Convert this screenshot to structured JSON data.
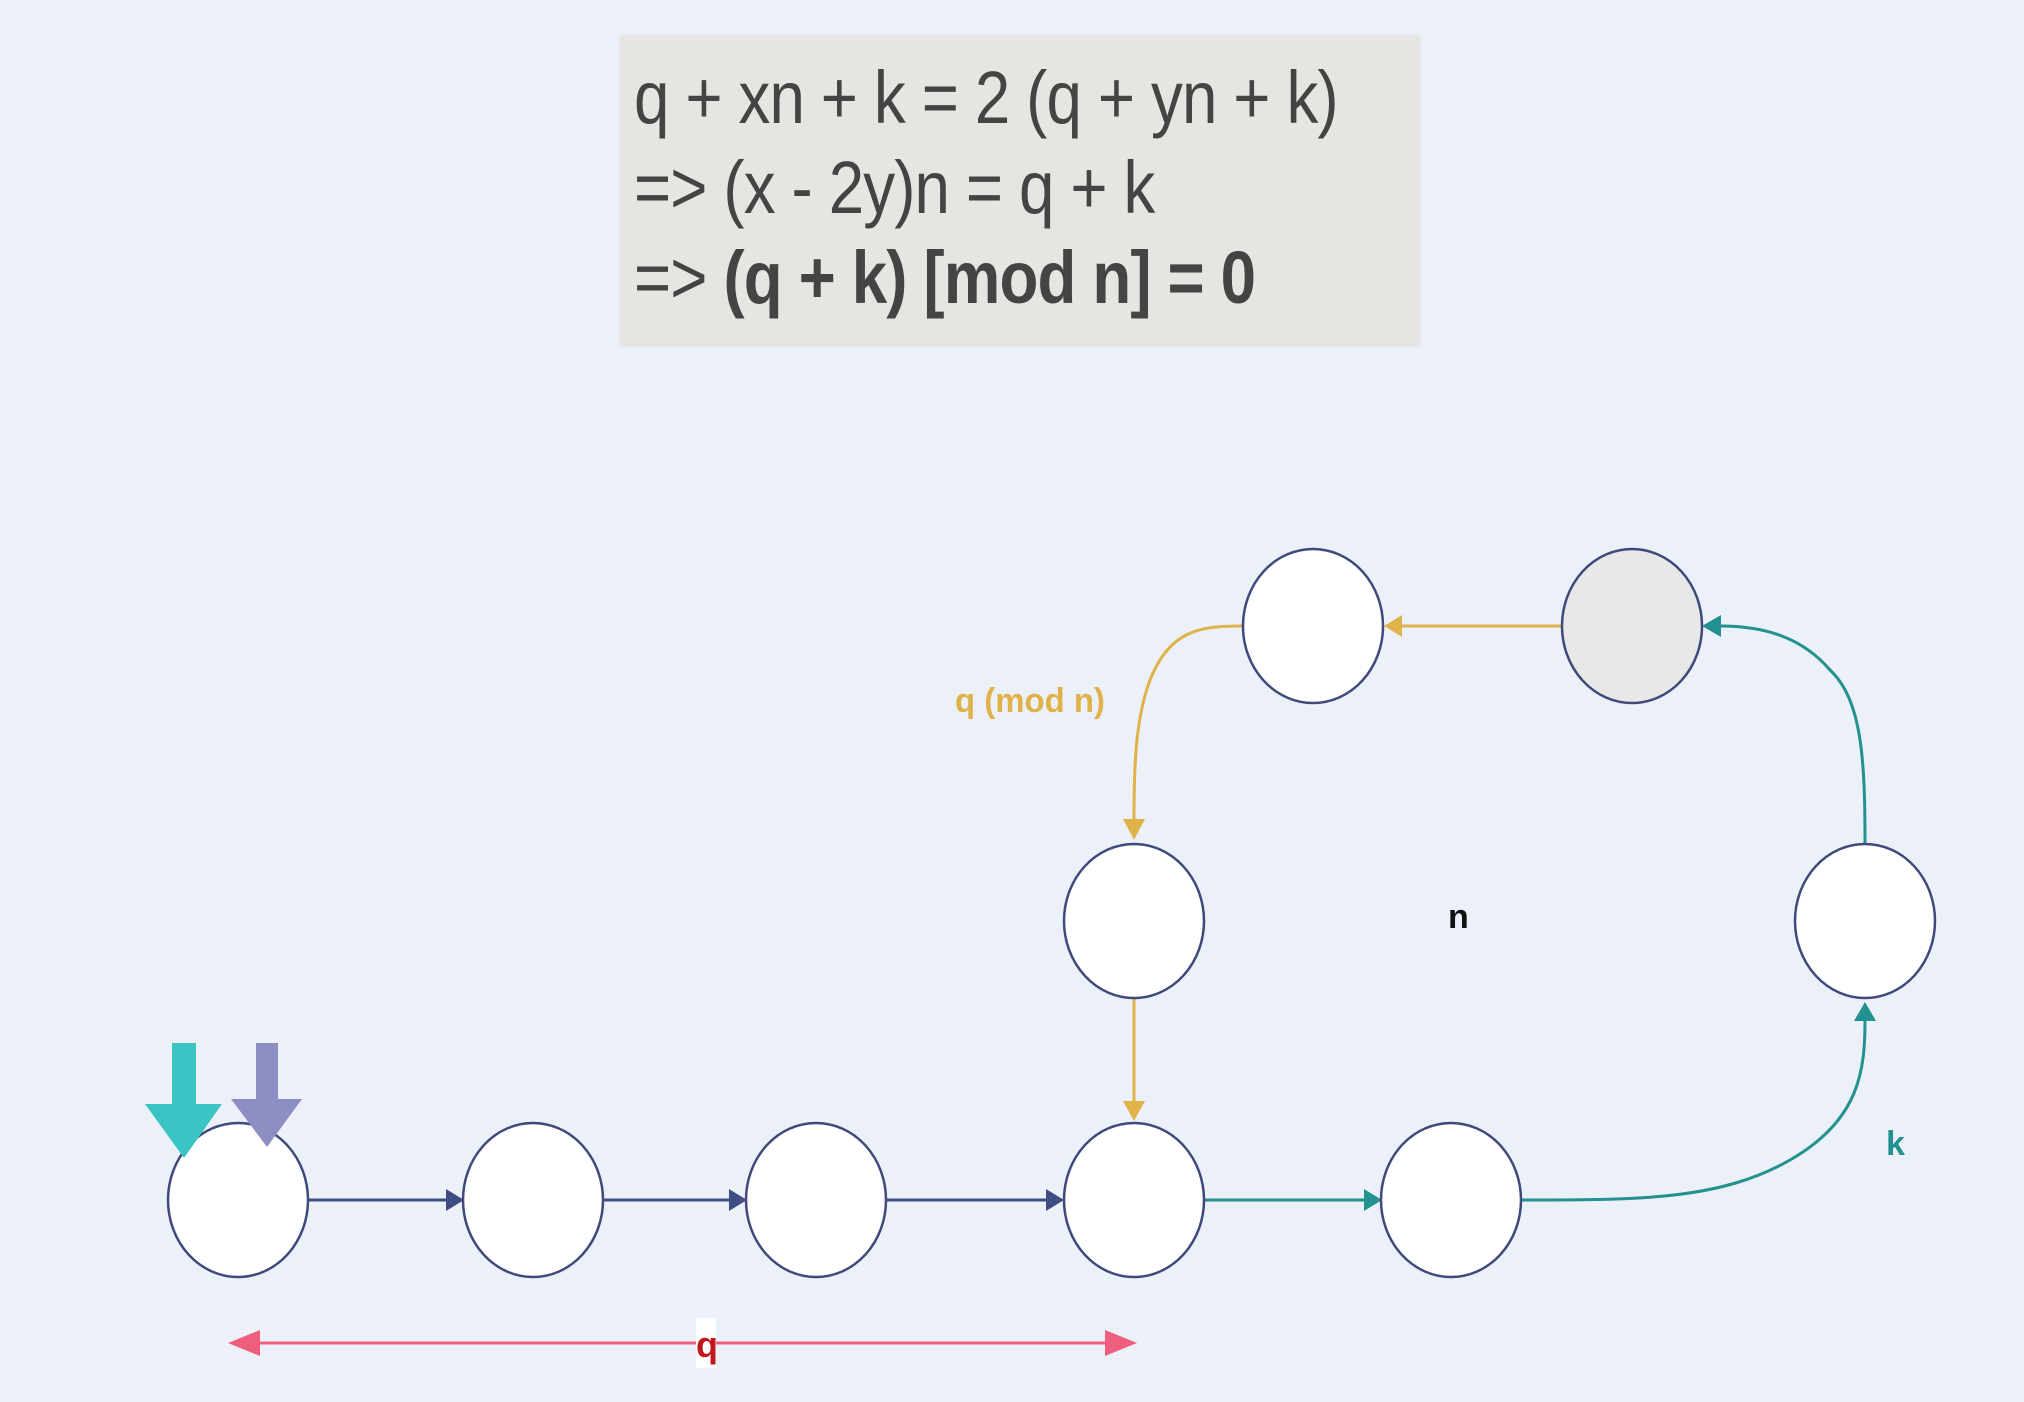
{
  "formula": {
    "line1": "q + xn + k = 2 (q + yn + k)",
    "line2": "=> (x - 2y)n = q + k",
    "line3_prefix": "=> ",
    "line3_bold": "(q + k) [mod n] = 0"
  },
  "labels": {
    "q_mod_n": "q (mod n)",
    "n": "n",
    "k": "k",
    "q": "q"
  },
  "colors": {
    "background": "#ecf0f9",
    "node_stroke": "#3f4a7a",
    "node_fill": "#ffffff",
    "node_fill_highlight": "#e8e8e8",
    "path_q": "#3f4f86",
    "path_k": "#23918f",
    "path_mod": "#e0b24a",
    "measure_q": "#ee5f7e",
    "label_q": "#c0161c",
    "label_n": "#111111",
    "pointer_fast": "#3bc4c4",
    "pointer_slow": "#8f8ec4"
  },
  "icons": {
    "fast_pointer": "arrow-down-icon",
    "slow_pointer": "arrow-down-icon"
  }
}
